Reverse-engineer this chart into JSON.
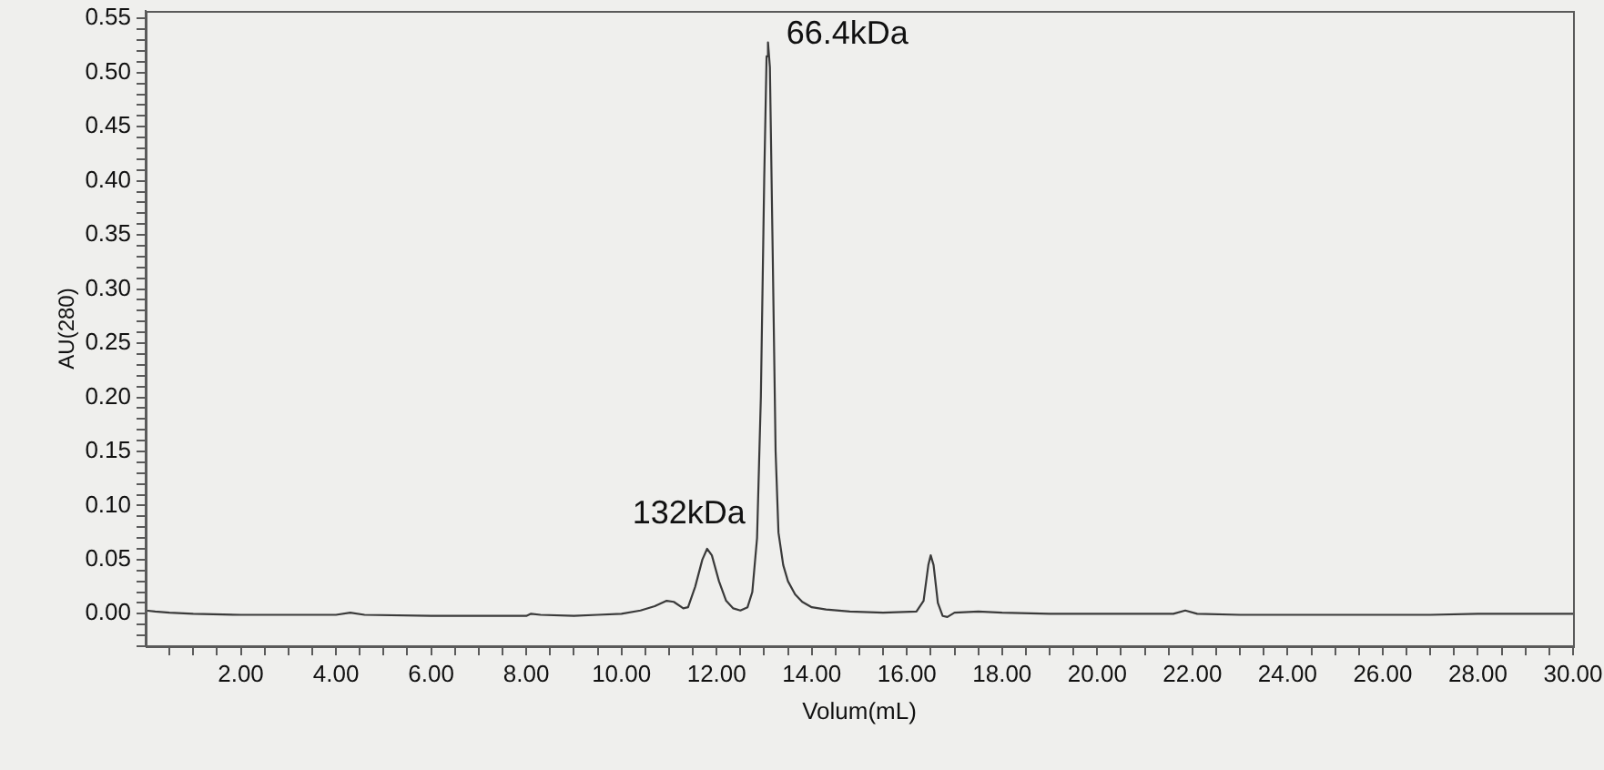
{
  "chart_data": {
    "type": "line",
    "xlabel": "Volum(mL)",
    "ylabel": "AU(280)",
    "series": [
      {
        "color": "#3a3a3a",
        "x": [
          0.0,
          0.2,
          0.5,
          1.0,
          2.0,
          3.0,
          4.0,
          4.3,
          4.6,
          6.0,
          8.0,
          8.1,
          8.3,
          9.0,
          9.5,
          10.0,
          10.4,
          10.7,
          10.95,
          11.1,
          11.3,
          11.4,
          11.55,
          11.7,
          11.8,
          11.9,
          12.05,
          12.2,
          12.35,
          12.5,
          12.65,
          12.75,
          12.85,
          12.93,
          13.0,
          13.05,
          13.08,
          13.12,
          13.18,
          13.24,
          13.3,
          13.4,
          13.5,
          13.65,
          13.8,
          14.0,
          14.3,
          14.8,
          15.5,
          16.2,
          16.35,
          16.45,
          16.5,
          16.56,
          16.65,
          16.75,
          16.85,
          17.0,
          17.5,
          18.0,
          19.0,
          20.0,
          21.0,
          21.6,
          21.85,
          22.1,
          23.0,
          25.0,
          27.0,
          28.0,
          30.0
        ],
        "values": [
          0.003,
          0.002,
          0.001,
          0.0,
          -0.001,
          -0.001,
          -0.001,
          0.001,
          -0.001,
          -0.002,
          -0.002,
          0.0,
          -0.001,
          -0.002,
          -0.001,
          0.0,
          0.003,
          0.007,
          0.012,
          0.011,
          0.005,
          0.006,
          0.025,
          0.05,
          0.06,
          0.054,
          0.03,
          0.012,
          0.005,
          0.003,
          0.006,
          0.02,
          0.07,
          0.2,
          0.4,
          0.515,
          0.528,
          0.505,
          0.33,
          0.15,
          0.075,
          0.045,
          0.03,
          0.018,
          0.011,
          0.006,
          0.004,
          0.002,
          0.001,
          0.002,
          0.012,
          0.045,
          0.054,
          0.045,
          0.01,
          -0.002,
          -0.003,
          0.001,
          0.002,
          0.001,
          0.0,
          0.0,
          0.0,
          0.0,
          0.003,
          0.0,
          -0.001,
          -0.001,
          -0.001,
          0.0,
          0.0
        ]
      }
    ],
    "xlim": [
      0,
      30
    ],
    "ylim": [
      -0.03,
      0.557
    ],
    "xticks": [
      {
        "value": 0.5,
        "label": null
      },
      {
        "value": 1,
        "label": null
      },
      {
        "value": 1.5,
        "label": null
      },
      {
        "value": 2,
        "label": "2.00"
      },
      {
        "value": 2.5,
        "label": null
      },
      {
        "value": 3,
        "label": null
      },
      {
        "value": 3.5,
        "label": null
      },
      {
        "value": 4,
        "label": "4.00"
      },
      {
        "value": 4.5,
        "label": null
      },
      {
        "value": 5,
        "label": null
      },
      {
        "value": 5.5,
        "label": null
      },
      {
        "value": 6,
        "label": "6.00"
      },
      {
        "value": 6.5,
        "label": null
      },
      {
        "value": 7,
        "label": null
      },
      {
        "value": 7.5,
        "label": null
      },
      {
        "value": 8,
        "label": "8.00"
      },
      {
        "value": 8.5,
        "label": null
      },
      {
        "value": 9,
        "label": null
      },
      {
        "value": 9.5,
        "label": null
      },
      {
        "value": 10,
        "label": "10.00"
      },
      {
        "value": 10.5,
        "label": null
      },
      {
        "value": 11,
        "label": null
      },
      {
        "value": 11.5,
        "label": null
      },
      {
        "value": 12,
        "label": "12.00"
      },
      {
        "value": 12.5,
        "label": null
      },
      {
        "value": 13,
        "label": null
      },
      {
        "value": 13.5,
        "label": null
      },
      {
        "value": 14,
        "label": "14.00"
      },
      {
        "value": 14.5,
        "label": null
      },
      {
        "value": 15,
        "label": null
      },
      {
        "value": 15.5,
        "label": null
      },
      {
        "value": 16,
        "label": "16.00"
      },
      {
        "value": 16.5,
        "label": null
      },
      {
        "value": 17,
        "label": null
      },
      {
        "value": 17.5,
        "label": null
      },
      {
        "value": 18,
        "label": "18.00"
      },
      {
        "value": 18.5,
        "label": null
      },
      {
        "value": 19,
        "label": null
      },
      {
        "value": 19.5,
        "label": null
      },
      {
        "value": 20,
        "label": "20.00"
      },
      {
        "value": 20.5,
        "label": null
      },
      {
        "value": 21,
        "label": null
      },
      {
        "value": 21.5,
        "label": null
      },
      {
        "value": 22,
        "label": "22.00"
      },
      {
        "value": 22.5,
        "label": null
      },
      {
        "value": 23,
        "label": null
      },
      {
        "value": 23.5,
        "label": null
      },
      {
        "value": 24,
        "label": "24.00"
      },
      {
        "value": 24.5,
        "label": null
      },
      {
        "value": 25,
        "label": null
      },
      {
        "value": 25.5,
        "label": null
      },
      {
        "value": 26,
        "label": "26.00"
      },
      {
        "value": 26.5,
        "label": null
      },
      {
        "value": 27,
        "label": null
      },
      {
        "value": 27.5,
        "label": null
      },
      {
        "value": 28,
        "label": "28.00"
      },
      {
        "value": 28.5,
        "label": null
      },
      {
        "value": 29,
        "label": null
      },
      {
        "value": 29.5,
        "label": null
      },
      {
        "value": 30,
        "label": "30.00"
      }
    ],
    "yticks": [
      {
        "value": -0.03,
        "label": null
      },
      {
        "value": -0.02,
        "label": null
      },
      {
        "value": -0.01,
        "label": null
      },
      {
        "value": 0,
        "label": "0.00"
      },
      {
        "value": 0.01,
        "label": null
      },
      {
        "value": 0.02,
        "label": null
      },
      {
        "value": 0.03,
        "label": null
      },
      {
        "value": 0.04,
        "label": null
      },
      {
        "value": 0.05,
        "label": "0.05"
      },
      {
        "value": 0.06,
        "label": null
      },
      {
        "value": 0.07,
        "label": null
      },
      {
        "value": 0.08,
        "label": null
      },
      {
        "value": 0.09,
        "label": null
      },
      {
        "value": 0.1,
        "label": "0.10"
      },
      {
        "value": 0.11,
        "label": null
      },
      {
        "value": 0.12,
        "label": null
      },
      {
        "value": 0.13,
        "label": null
      },
      {
        "value": 0.14,
        "label": null
      },
      {
        "value": 0.15,
        "label": "0.15"
      },
      {
        "value": 0.16,
        "label": null
      },
      {
        "value": 0.17,
        "label": null
      },
      {
        "value": 0.18,
        "label": null
      },
      {
        "value": 0.19,
        "label": null
      },
      {
        "value": 0.2,
        "label": "0.20"
      },
      {
        "value": 0.21,
        "label": null
      },
      {
        "value": 0.22,
        "label": null
      },
      {
        "value": 0.23,
        "label": null
      },
      {
        "value": 0.24,
        "label": null
      },
      {
        "value": 0.25,
        "label": "0.25"
      },
      {
        "value": 0.26,
        "label": null
      },
      {
        "value": 0.27,
        "label": null
      },
      {
        "value": 0.28,
        "label": null
      },
      {
        "value": 0.29,
        "label": null
      },
      {
        "value": 0.3,
        "label": "0.30"
      },
      {
        "value": 0.31,
        "label": null
      },
      {
        "value": 0.32,
        "label": null
      },
      {
        "value": 0.33,
        "label": null
      },
      {
        "value": 0.34,
        "label": null
      },
      {
        "value": 0.35,
        "label": "0.35"
      },
      {
        "value": 0.36,
        "label": null
      },
      {
        "value": 0.37,
        "label": null
      },
      {
        "value": 0.38,
        "label": null
      },
      {
        "value": 0.39,
        "label": null
      },
      {
        "value": 0.4,
        "label": "0.40"
      },
      {
        "value": 0.41,
        "label": null
      },
      {
        "value": 0.42,
        "label": null
      },
      {
        "value": 0.43,
        "label": null
      },
      {
        "value": 0.44,
        "label": null
      },
      {
        "value": 0.45,
        "label": "0.45"
      },
      {
        "value": 0.46,
        "label": null
      },
      {
        "value": 0.47,
        "label": null
      },
      {
        "value": 0.48,
        "label": null
      },
      {
        "value": 0.49,
        "label": null
      },
      {
        "value": 0.5,
        "label": "0.50"
      },
      {
        "value": 0.51,
        "label": null
      },
      {
        "value": 0.52,
        "label": null
      },
      {
        "value": 0.53,
        "label": null
      },
      {
        "value": 0.54,
        "label": null
      },
      {
        "value": 0.55,
        "label": "0.55"
      }
    ],
    "grid": false,
    "legend": false,
    "marker": "none",
    "line_style": "solid",
    "annotations": [
      {
        "text": "66.4kDa",
        "x": 13.08,
        "y": 0.528
      },
      {
        "text": "132kDa",
        "x": 11.8,
        "y": 0.06
      }
    ]
  }
}
